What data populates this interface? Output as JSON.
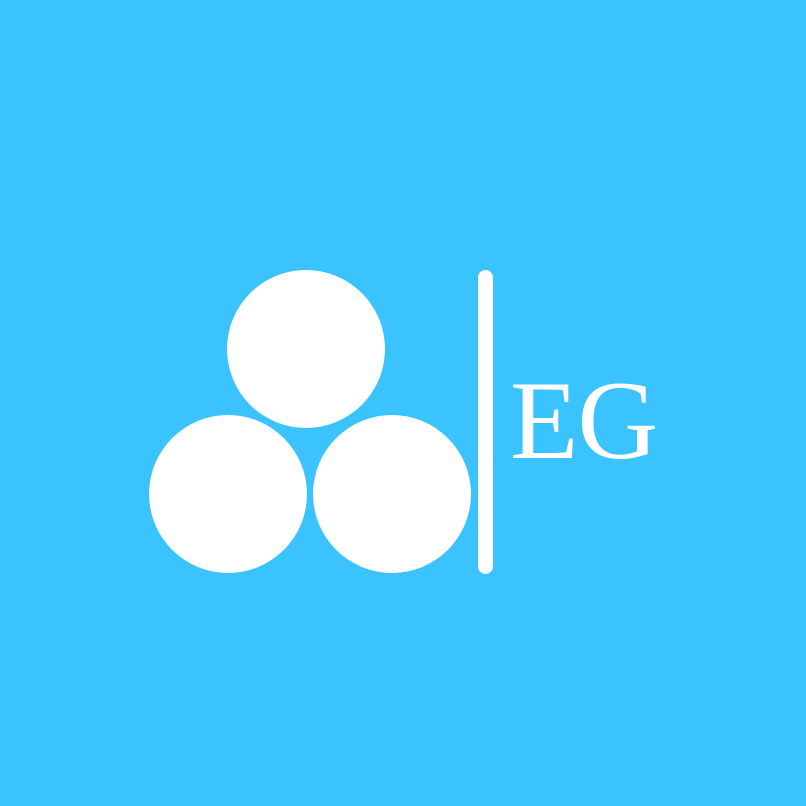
{
  "logo": {
    "wordmark": "EG",
    "background_color": "#3AC3FF",
    "foreground_color": "#FFFFFF",
    "icon": "three-circles-icon"
  }
}
